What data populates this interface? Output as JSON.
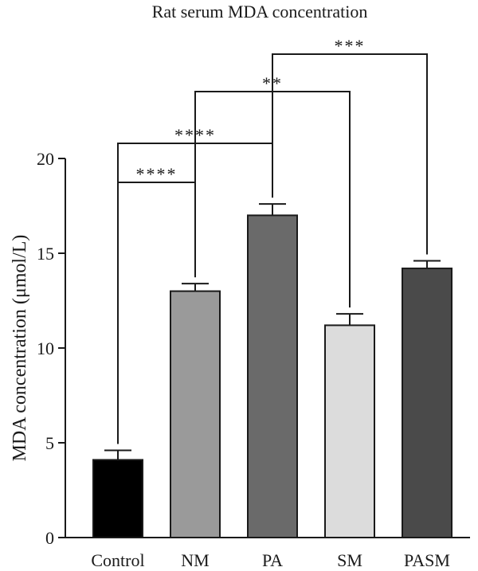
{
  "chart_data": {
    "type": "bar",
    "title": "Rat serum MDA concentration",
    "xlabel": "",
    "ylabel": "MDA concentration (μmol/L)",
    "ylim": [
      0,
      20
    ],
    "yticks": [
      0,
      5,
      10,
      15,
      20
    ],
    "grid": false,
    "categories": [
      "Control",
      "NM",
      "PA",
      "SM",
      "PASM"
    ],
    "values": [
      4.1,
      13.0,
      17.0,
      11.2,
      14.2
    ],
    "errors": [
      0.5,
      0.4,
      0.6,
      0.6,
      0.4
    ],
    "colors": [
      "#000000",
      "#9a9a9a",
      "#6a6a6a",
      "#dcdcdc",
      "#4a4a4a"
    ],
    "significance": [
      {
        "from": "Control",
        "to": "NM",
        "label": "****"
      },
      {
        "from": "Control",
        "to": "PA",
        "label": "****"
      },
      {
        "from": "NM",
        "to": "SM",
        "label": "**"
      },
      {
        "from": "PA",
        "to": "PASM",
        "label": "***"
      }
    ]
  }
}
